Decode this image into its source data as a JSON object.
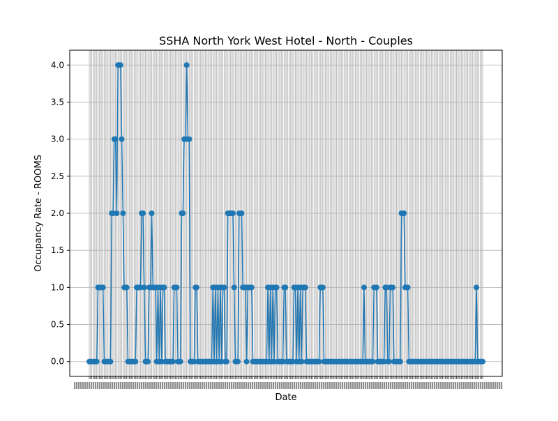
{
  "chart_data": {
    "type": "line",
    "title": "SSHA North York West Hotel - North - Couples",
    "xlabel": "Date",
    "ylabel": "Occupancy Rate - ROOMS",
    "ylim": [
      -0.2,
      4.2
    ],
    "yticks": [
      0.0,
      0.5,
      1.0,
      1.5,
      2.0,
      2.5,
      3.0,
      3.5,
      4.0
    ],
    "ytick_labels": [
      "0.0",
      "0.5",
      "1.0",
      "1.5",
      "2.0",
      "2.5",
      "3.0",
      "3.5",
      "4.0"
    ],
    "grid": true,
    "series_color": "#1f77b4",
    "x_tick_labels_overlapping": true,
    "values": [
      0,
      0,
      0,
      0,
      0,
      0,
      0,
      1,
      1,
      1,
      1,
      1,
      0,
      0,
      0,
      0,
      0,
      0,
      2,
      2,
      3,
      3,
      2,
      4,
      4,
      4,
      3,
      2,
      1,
      1,
      1,
      0,
      0,
      0,
      0,
      0,
      0,
      0,
      1,
      1,
      1,
      1,
      2,
      2,
      1,
      0,
      0,
      0,
      1,
      1,
      2,
      1,
      1,
      1,
      0,
      1,
      0,
      1,
      0,
      1,
      1,
      0,
      0,
      0,
      0,
      0,
      0,
      0,
      1,
      1,
      1,
      0,
      0,
      0,
      2,
      2,
      3,
      3,
      4,
      3,
      3,
      0,
      0,
      0,
      0,
      1,
      1,
      0,
      0,
      0,
      0,
      0,
      0,
      0,
      0,
      0,
      0,
      0,
      0,
      1,
      0,
      1,
      0,
      1,
      0,
      1,
      0,
      1,
      1,
      0,
      0,
      2,
      2,
      2,
      2,
      2,
      1,
      0,
      0,
      0,
      2,
      2,
      2,
      1,
      1,
      1,
      0,
      1,
      1,
      1,
      1,
      0,
      0,
      0,
      0,
      0,
      0,
      0,
      0,
      0,
      0,
      0,
      0,
      1,
      0,
      1,
      0,
      1,
      0,
      1,
      1,
      0,
      0,
      0,
      0,
      0,
      1,
      1,
      0,
      0,
      0,
      0,
      0,
      0,
      1,
      1,
      0,
      1,
      0,
      1,
      0,
      1,
      1,
      1,
      0,
      0,
      0,
      0,
      0,
      0,
      0,
      0,
      0,
      0,
      0,
      1,
      1,
      1,
      0,
      0,
      0,
      0,
      0,
      0,
      0,
      0,
      0,
      0,
      0,
      0,
      0,
      0,
      0,
      0,
      0,
      0,
      0,
      0,
      0,
      0,
      0,
      0,
      0,
      0,
      0,
      0,
      0,
      0,
      0,
      0,
      1,
      0,
      0,
      0,
      0,
      0,
      0,
      0,
      1,
      1,
      1,
      0,
      0,
      0,
      0,
      0,
      0,
      1,
      1,
      0,
      0,
      1,
      1,
      1,
      0,
      0,
      0,
      0,
      0,
      0,
      2,
      2,
      2,
      1,
      1,
      1,
      0,
      0,
      0,
      0,
      0,
      0,
      0,
      0,
      0,
      0,
      0,
      0,
      0,
      0,
      0,
      0,
      0,
      0,
      0,
      0,
      0,
      0,
      0,
      0,
      0,
      0,
      0,
      0,
      0,
      0,
      0,
      0,
      0,
      0,
      0,
      0,
      0,
      0,
      0,
      0,
      0,
      0,
      0,
      0,
      0,
      0,
      0,
      0,
      0,
      0,
      0,
      0,
      0,
      0,
      1,
      0,
      0,
      0,
      0,
      0
    ]
  }
}
